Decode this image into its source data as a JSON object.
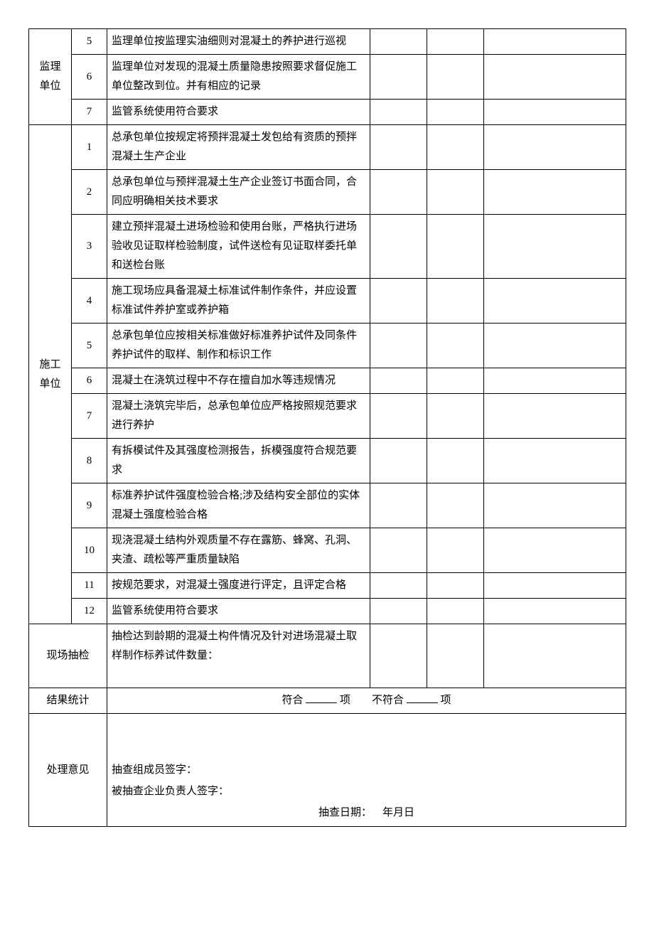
{
  "groups": [
    {
      "label": "监理\n单位",
      "rows": [
        {
          "num": "5",
          "text": "监理单位按监理实油细则对混凝土的养护进行巡视"
        },
        {
          "num": "6",
          "text": "监理单位对发现的混凝土质量隐患按照要求督促施工单位整改到位。并有相应的记录"
        },
        {
          "num": "7",
          "text": "监管系统使用符合要求"
        }
      ]
    },
    {
      "label": "施工\n单位",
      "rows": [
        {
          "num": "1",
          "text": "总承包单位按规定将预拌混凝土发包给有资质的预拌混凝土生产企业"
        },
        {
          "num": "2",
          "text": "总承包单位与预拌混凝土生产企业签订书面合同，合同应明确相关技术要求"
        },
        {
          "num": "3",
          "text": "建立预拌混凝土进场检验和使用台账，严格执行进场验收见证取样检验制度，试件送检有见证取样委托单和送检台账"
        },
        {
          "num": "4",
          "text": "施工现场应具备混凝土标准试件制作条件，并应设置标准试件养护室或养护箱"
        },
        {
          "num": "5",
          "text": "总承包单位应按相关标准做好标准养护试件及同条件养护试件的取样、制作和标识工作"
        },
        {
          "num": "6",
          "text": "混凝土在浇筑过程中不存在擅自加水等违规情况"
        },
        {
          "num": "7",
          "text": "混凝土浇筑完毕后，总承包单位应严格按照规范要求进行养护"
        },
        {
          "num": "8",
          "text": "有拆模试件及其强度检测报告，拆模强度符合规范要求"
        },
        {
          "num": "9",
          "text": "标准养护试件强度检验合格;涉及结构安全部位的实体混凝土强度检验合格"
        },
        {
          "num": "10",
          "text": "现浇混凝土结构外观质量不存在露筋、蜂窝、孔洞、夹渣、疏松等严重质量缺陷"
        },
        {
          "num": "11",
          "text": "按规范要求，对混凝土强度进行评定，且评定合格"
        },
        {
          "num": "12",
          "text": "监管系统使用符合要求"
        }
      ]
    }
  ],
  "footer": {
    "spot_check_label": "现场抽检",
    "spot_check_text": "抽检达到龄期的混凝土构件情况及针对进场混凝土取样制作标养试件数量：",
    "result_label": "结果统计",
    "result_pass": "符合",
    "result_fail": "不符合",
    "result_unit": "项",
    "opinion_label": "处理意见",
    "sig_group": "抽查组成员签字：",
    "sig_company": "被抽查企业负责人签字：",
    "date_label": "抽查日期：",
    "date_value": "年月日"
  }
}
